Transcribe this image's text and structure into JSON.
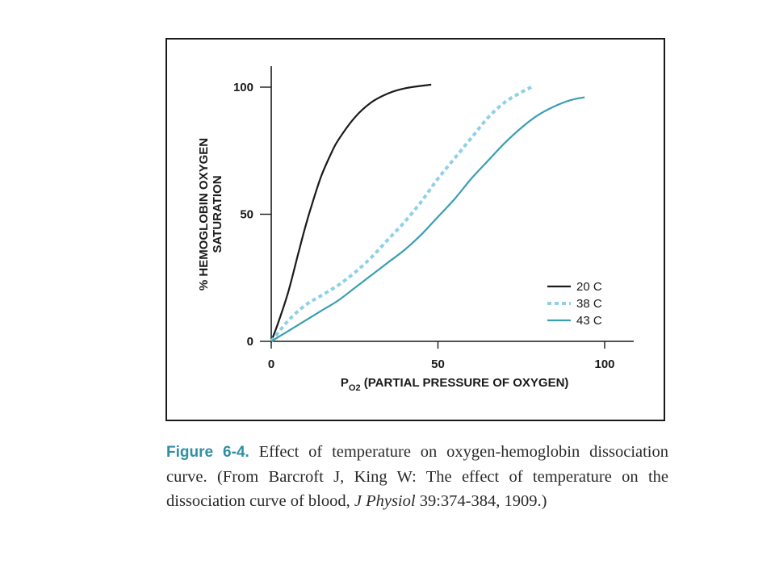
{
  "colors": {
    "frame": "#1a1a1a",
    "axis": "#1a1a1a",
    "caption_label": "#2f8fa3",
    "caption_text": "#2a2a2a"
  },
  "chart_data": {
    "type": "line",
    "xlabel_prefix": "P",
    "xlabel_subscript": "O2",
    "xlabel_rest": "(PARTIAL PRESSURE OF OXYGEN)",
    "ylabel_line1": "% HEMOGLOBIN OXYGEN",
    "ylabel_line2": "SATURATION",
    "xlim": [
      0,
      110
    ],
    "ylim": [
      0,
      105
    ],
    "xticks": [
      0,
      50,
      100
    ],
    "yticks": [
      0,
      50,
      100
    ],
    "grid": false,
    "legend_position": "bottom-right",
    "series": [
      {
        "name": "20 C",
        "color": "#1a1a1a",
        "dash": "solid",
        "x": [
          0,
          2,
          5,
          8,
          10,
          12,
          15,
          18,
          20,
          25,
          30,
          35,
          40,
          45,
          48
        ],
        "y": [
          0,
          7,
          19,
          34,
          44,
          53,
          65,
          74,
          79,
          88,
          94,
          97.5,
          99.5,
          100.5,
          101
        ]
      },
      {
        "name": "38 C",
        "color": "#8fd0e6",
        "dash": "dashed",
        "x": [
          0,
          5,
          10,
          15,
          20,
          25,
          30,
          35,
          40,
          45,
          50,
          55,
          60,
          65,
          70,
          75,
          78
        ],
        "y": [
          0,
          8,
          14,
          18,
          22,
          27,
          33,
          40,
          47,
          55,
          64,
          72,
          80,
          88,
          94,
          98,
          100
        ]
      },
      {
        "name": "43 C",
        "color": "#3a9fb1",
        "dash": "solid",
        "x": [
          0,
          5,
          10,
          15,
          20,
          25,
          30,
          35,
          40,
          45,
          50,
          55,
          60,
          65,
          70,
          75,
          80,
          85,
          90,
          94
        ],
        "y": [
          0,
          4,
          8,
          12,
          16,
          21,
          26,
          31,
          36,
          42,
          49,
          56,
          64,
          71,
          78,
          84,
          89,
          92.5,
          95,
          96
        ]
      }
    ]
  },
  "caption": {
    "label": "Figure 6-4.",
    "text": " Effect of temperature on oxygen-hemoglobin dissociation curve. (From Barcroft J, King W: The effect of temperature on the dissociation curve of blood, ",
    "journal": "J Physiol",
    "citation_end": " 39:374-384, 1909.)"
  }
}
